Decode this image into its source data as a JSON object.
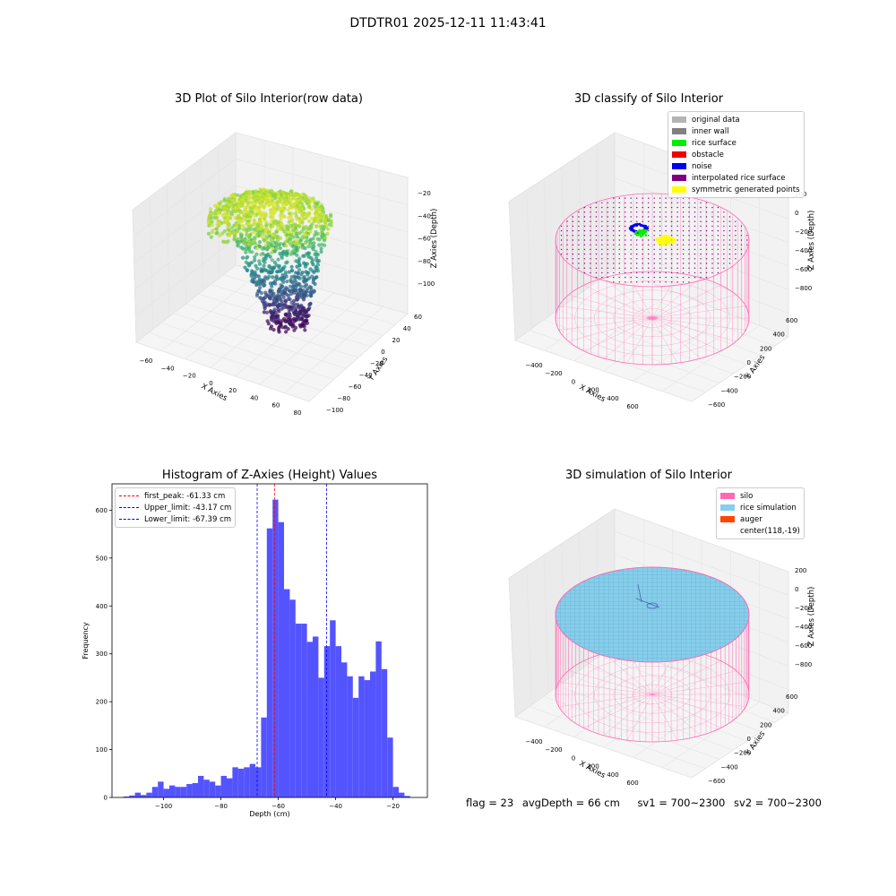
{
  "window": {
    "title": "DTDTR01 2025-12-11 11:43:41"
  },
  "panels": {
    "raw": {
      "title": "3D Plot of Silo Interior(row data)",
      "xlabel": "X Axies",
      "ylabel": "Y Axies",
      "zlabel": "Z Axies (Depth)",
      "xticks": [
        "−60",
        "−40",
        "−20",
        "0",
        "20",
        "40",
        "60",
        "80"
      ],
      "yticks": [
        "−100",
        "−80",
        "−60",
        "−40",
        "−20",
        "0",
        "20",
        "40",
        "60"
      ],
      "zticks": [
        "−100",
        "−80",
        "−60",
        "−40",
        "−20"
      ]
    },
    "classify": {
      "title": "3D classify of Silo Interior",
      "xlabel": "X Axies",
      "ylabel": "Y Axies",
      "zlabel": "Z Axies (Depth)",
      "xticks": [
        "−400",
        "−200",
        "0",
        "200",
        "400",
        "600"
      ],
      "yticks": [
        "−600",
        "−400",
        "−200",
        "0",
        "200",
        "400",
        "600"
      ],
      "zticks": [
        "−800",
        "−600",
        "−400",
        "−200",
        "0",
        "200"
      ],
      "legend": [
        {
          "label": "original data",
          "color": "#b4b4b4"
        },
        {
          "label": "inner wall",
          "color": "#808080"
        },
        {
          "label": "rice surface",
          "color": "#00ee00"
        },
        {
          "label": "obstacle",
          "color": "#ee0000"
        },
        {
          "label": "noise",
          "color": "#0000ee"
        },
        {
          "label": "interpolated rice surface",
          "color": "#800080"
        },
        {
          "label": "symmetric generated points",
          "color": "#ffff00"
        }
      ]
    },
    "simulation": {
      "title": "3D simulation of Silo Interior",
      "xlabel": "X Axies",
      "ylabel": "Y Axies",
      "zlabel": "Z Axies (Depth)",
      "xticks": [
        "−400",
        "−200",
        "0",
        "200",
        "400",
        "600"
      ],
      "yticks": [
        "−600",
        "−400",
        "−200",
        "0",
        "200",
        "400",
        "600"
      ],
      "zticks": [
        "−800",
        "−600",
        "−400",
        "−200",
        "0",
        "200"
      ],
      "legend": [
        {
          "label": "silo",
          "color": "#ff69b4"
        },
        {
          "label": "rice simulation",
          "color": "#87ceeb"
        },
        {
          "label": "auger",
          "color": "#ff4500"
        },
        {
          "label": "center(118,-19)",
          "color": ""
        }
      ]
    }
  },
  "footer": {
    "flag": "flag = 23",
    "avg": "avgDepth = 66 cm",
    "sv1": "sv1 = 700~2300",
    "sv2": "sv2 = 700~2300"
  },
  "chart_data": [
    {
      "type": "scatter",
      "title": "3D Plot of Silo Interior(row data)",
      "xlabel": "X Axies",
      "ylabel": "Y Axies",
      "zlabel": "Z Axies (Depth)",
      "xlim": [
        -70,
        85
      ],
      "ylim": [
        -105,
        65
      ],
      "zlim": [
        -115,
        -15
      ],
      "colormap": "viridis"
    },
    {
      "type": "scatter",
      "title": "3D classify of Silo Interior",
      "xlim": [
        -500,
        700
      ],
      "ylim": [
        -700,
        700
      ],
      "zlim": [
        -900,
        250
      ],
      "legend_placement": "top-right"
    },
    {
      "type": "bar",
      "title": "Histogram of Z-Axies (Height) Values",
      "xlabel": "Depth (cm)",
      "ylabel": "Frequency",
      "xlim": [
        -118,
        -8
      ],
      "ylim": [
        0,
        655
      ],
      "xticks": [
        -100,
        -80,
        -60,
        -40,
        -20
      ],
      "yticks": [
        0,
        100,
        200,
        300,
        400,
        500,
        600
      ],
      "bin_start": -114,
      "bin_width": 2,
      "values": [
        2,
        4,
        10,
        5,
        10,
        22,
        33,
        18,
        25,
        22,
        22,
        28,
        30,
        45,
        37,
        33,
        25,
        45,
        40,
        63,
        60,
        63,
        70,
        63,
        167,
        562,
        622,
        575,
        435,
        413,
        363,
        363,
        325,
        336,
        250,
        316,
        370,
        316,
        282,
        253,
        208,
        253,
        245,
        263,
        326,
        268,
        125,
        22,
        10,
        3
      ],
      "lines": [
        {
          "label": "first_peak: -61.33 cm",
          "x": -61.33,
          "color": "#ff0000"
        },
        {
          "label": "Upper_limit: -43.17 cm",
          "x": -43.17,
          "color": "#0000ff"
        },
        {
          "label": "Lower_limit: -67.39 cm",
          "x": -67.39,
          "color": "#0000ff"
        }
      ],
      "legend_placement": "top-left",
      "bar_color": "#4b4bff"
    },
    {
      "type": "scatter",
      "title": "3D simulation of Silo Interior",
      "xlim": [
        -500,
        700
      ],
      "ylim": [
        -700,
        700
      ],
      "zlim": [
        -900,
        250
      ],
      "legend_placement": "top-right"
    }
  ]
}
